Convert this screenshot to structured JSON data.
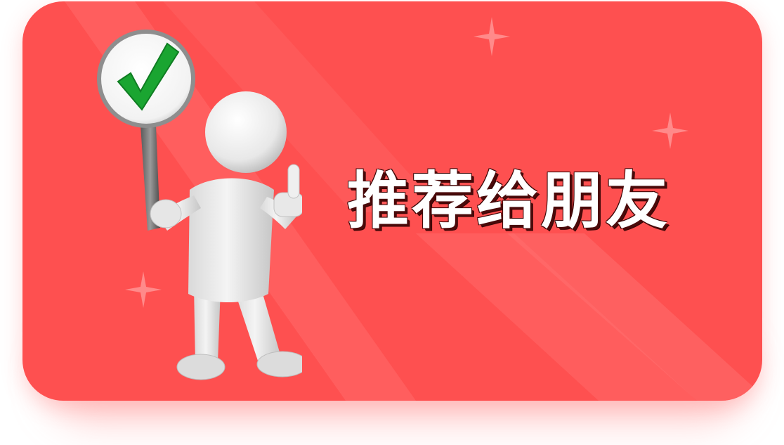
{
  "recommend_card": {
    "label": "推荐给朋友",
    "background_color": "#fe5050",
    "text_color": "#ffffff",
    "text_outline_color": "#3a0606",
    "checkmark_color": "#1aa531",
    "illustration": "person-holding-checkmark-sign-thumbs-up",
    "sign_icon": "checkmark-icon",
    "sparkle_icon": "sparkle-icon"
  }
}
